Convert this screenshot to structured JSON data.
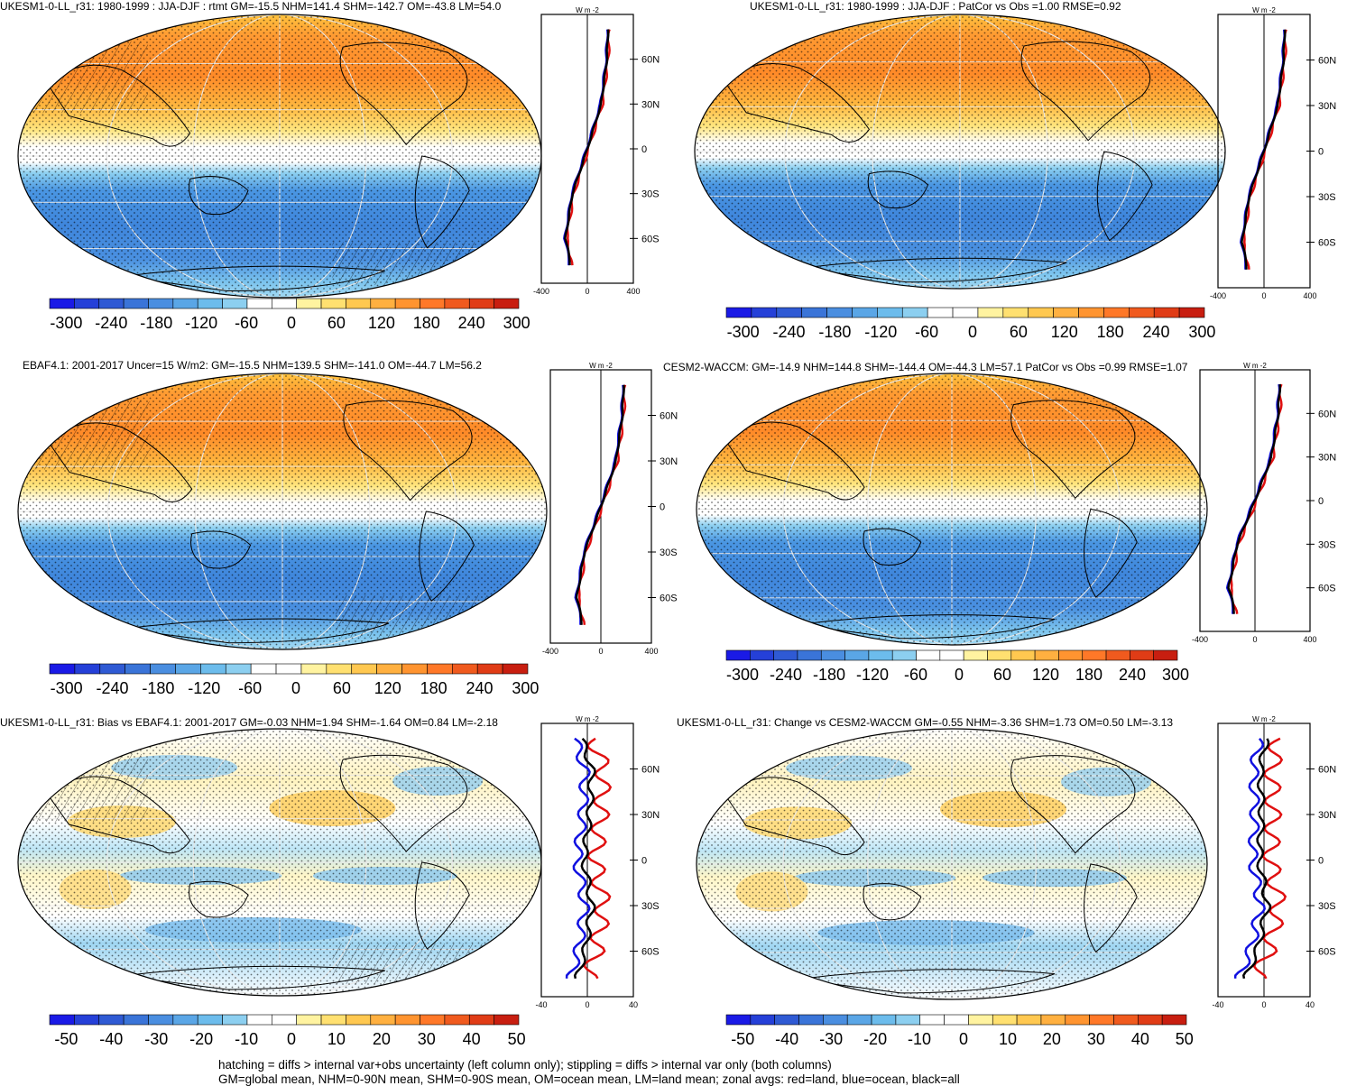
{
  "panels": [
    {
      "id": "p1",
      "title": "UKESM1-0-LL_r31: 1980-1999 : JJA-DJF : rtmt GM=-15.5 NHM=141.4 SHM=-142.7 OM=-43.8 LM=54.0",
      "scale": "full",
      "hatch": true
    },
    {
      "id": "p2",
      "title": "UKESM1-0-LL_r31: 1980-1999 : JJA-DJF : PatCor vs Obs =1.00 RMSE=0.92",
      "scale": "full",
      "hatch": false
    },
    {
      "id": "p3",
      "title": "EBAF4.1: 2001-2017 Uncer=15 W/m2: GM=-15.5 NHM=139.5 SHM=-141.0 OM=-44.7 LM=56.2",
      "scale": "full",
      "hatch": true
    },
    {
      "id": "p4",
      "title": "CESM2-WACCM: GM=-14.9 NHM=144.8 SHM=-144.4 OM=-44.3 LM=57.1 PatCor vs Obs =0.99 RMSE=1.07",
      "scale": "full",
      "hatch": false
    },
    {
      "id": "p5",
      "title": "UKESM1-0-LL_r31: Bias vs EBAF4.1: 2001-2017 GM=-0.03 NHM=1.94 SHM=-1.64 OM=0.84 LM=-2.18",
      "scale": "diff",
      "hatch": true
    },
    {
      "id": "p6",
      "title": "UKESM1-0-LL_r31: Change vs CESM2-WACCM GM=-0.55 NHM=-3.36 SHM=1.73 OM=0.50 LM=-3.13",
      "scale": "diff",
      "hatch": false
    }
  ],
  "zonal_axis": {
    "unit_label": "W m",
    "unit_sup": "-2",
    "lat_ticks": [
      "60N",
      "30N",
      "0",
      "30S",
      "60S"
    ],
    "full_ticks": [
      "-400",
      "0",
      "400"
    ],
    "diff_ticks": [
      "-40",
      "0",
      "40"
    ]
  },
  "colorbar": {
    "full_labels": [
      "-300",
      "-240",
      "-180",
      "-120",
      "-60",
      "0",
      "60",
      "120",
      "180",
      "240",
      "300"
    ],
    "diff_labels": [
      "-50",
      "-40",
      "-30",
      "-20",
      "-10",
      "0",
      "10",
      "20",
      "30",
      "40",
      "50"
    ],
    "colors": [
      "#1a1ae6",
      "#2540d8",
      "#2f5ad4",
      "#3a74d8",
      "#4a8ee0",
      "#5aa6e6",
      "#6cbcec",
      "#8ccff0",
      "#ffffff",
      "#ffffff",
      "#fff3a0",
      "#ffe070",
      "#ffc850",
      "#ffb040",
      "#ff9430",
      "#ff7828",
      "#f05a1e",
      "#e03c16",
      "#c81e10"
    ]
  },
  "footer": {
    "line1": "hatching = diffs > internal var+obs uncertainty (left column only); stippling = diffs > internal var only (both columns)",
    "line2": "GM=global mean, NHM=0-90N mean, SHM=0-90S mean, OM=ocean mean, LM=land mean; zonal avgs: red=land, blue=ocean, black=all"
  },
  "chart_data": [
    {
      "type": "heatmap",
      "title": "UKESM1-0-LL_r31: 1980-1999 : JJA-DJF : rtmt GM=-15.5 NHM=141.4 SHM=-142.7 OM=-43.8 LM=54.0",
      "zonal_mean_lat": [
        80,
        60,
        30,
        0,
        -30,
        -60,
        -75
      ],
      "zonal_mean_all": [
        180,
        170,
        120,
        0,
        -130,
        -190,
        -150
      ],
      "xlim": [
        -400,
        400
      ],
      "colorbar": [
        -300,
        300
      ]
    },
    {
      "type": "heatmap",
      "title": "UKESM1-0-LL_r31: 1980-1999 : JJA-DJF : PatCor vs Obs =1.00 RMSE=0.92",
      "zonal_mean_lat": [
        80,
        60,
        30,
        0,
        -30,
        -60,
        -75
      ],
      "zonal_mean_all": [
        180,
        170,
        120,
        0,
        -130,
        -190,
        -150
      ],
      "xlim": [
        -400,
        400
      ],
      "colorbar": [
        -300,
        300
      ]
    },
    {
      "type": "heatmap",
      "title": "EBAF4.1: 2001-2017 Uncer=15 W/m2: GM=-15.5 NHM=139.5 SHM=-141.0 OM=-44.7 LM=56.2",
      "zonal_mean_lat": [
        80,
        60,
        30,
        0,
        -30,
        -60,
        -75
      ],
      "zonal_mean_all": [
        180,
        170,
        120,
        0,
        -130,
        -190,
        -150
      ],
      "xlim": [
        -400,
        400
      ],
      "colorbar": [
        -300,
        300
      ]
    },
    {
      "type": "heatmap",
      "title": "CESM2-WACCM: GM=-14.9 NHM=144.8 SHM=-144.4 OM=-44.3 LM=57.1 PatCor vs Obs =0.99 RMSE=1.07",
      "zonal_mean_lat": [
        80,
        60,
        30,
        0,
        -30,
        -60,
        -75
      ],
      "zonal_mean_all": [
        180,
        170,
        120,
        0,
        -130,
        -190,
        -150
      ],
      "xlim": [
        -400,
        400
      ],
      "colorbar": [
        -300,
        300
      ]
    },
    {
      "type": "heatmap",
      "title": "UKESM1-0-LL_r31: Bias vs EBAF4.1: 2001-2017 GM=-0.03 NHM=1.94 SHM=-1.64 OM=0.84 LM=-2.18",
      "zonal_mean_lat": [
        80,
        60,
        30,
        0,
        -30,
        -60,
        -75
      ],
      "zonal_mean_all": [
        -5,
        4,
        2,
        -3,
        4,
        -2,
        -8
      ],
      "xlim": [
        -40,
        40
      ],
      "colorbar": [
        -50,
        50
      ]
    },
    {
      "type": "heatmap",
      "title": "UKESM1-0-LL_r31: Change vs CESM2-WACCM GM=-0.55 NHM=-3.36 SHM=1.73 OM=0.50 LM=-3.13",
      "zonal_mean_lat": [
        80,
        60,
        30,
        0,
        -30,
        -60,
        -75
      ],
      "zonal_mean_all": [
        2,
        -3,
        -2,
        -4,
        3,
        -6,
        -15
      ],
      "xlim": [
        -40,
        40
      ],
      "colorbar": [
        -50,
        50
      ]
    }
  ]
}
